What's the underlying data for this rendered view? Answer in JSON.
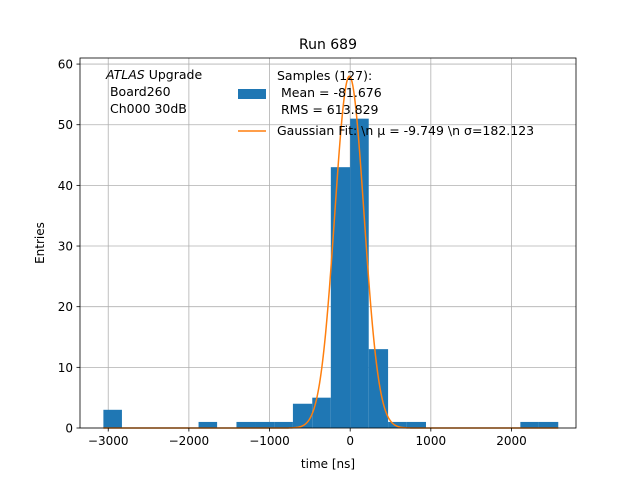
{
  "chart_data": {
    "type": "bar",
    "title": "Run 689",
    "xlabel": "time [ns]",
    "ylabel": "Entries",
    "xlim": [
      -3350,
      2800
    ],
    "ylim": [
      0,
      61
    ],
    "grid": true,
    "xticks": [
      -3000,
      -2000,
      -1000,
      0,
      1000,
      2000
    ],
    "xtick_labels": [
      "−3000",
      "−2000",
      "−1000",
      "0",
      "1000",
      "2000"
    ],
    "yticks": [
      0,
      10,
      20,
      30,
      40,
      50,
      60
    ],
    "ytick_labels": [
      "0",
      "10",
      "20",
      "30",
      "40",
      "50",
      "60"
    ],
    "annotation": {
      "italic": "ATLAS",
      "line1_rest": " Upgrade",
      "line2": " Board260",
      "line3": " Ch000 30dB"
    },
    "legend": {
      "placement": "top-right",
      "hist_lines": [
        "Samples (127):",
        " Mean = -81.676",
        " RMS = 613.829"
      ],
      "fit_label": "Gaussian Fit: \\n μ = -9.749 \\n σ=182.123"
    },
    "series": [
      {
        "kind": "histogram",
        "color": "#1f77b4",
        "bins": [
          {
            "x0": -3060,
            "x1": -2830,
            "count": 3
          },
          {
            "x0": -1880,
            "x1": -1650,
            "count": 1
          },
          {
            "x0": -1410,
            "x1": -1180,
            "count": 1
          },
          {
            "x0": -1180,
            "x1": -940,
            "count": 1
          },
          {
            "x0": -940,
            "x1": -710,
            "count": 1
          },
          {
            "x0": -710,
            "x1": -470,
            "count": 4
          },
          {
            "x0": -470,
            "x1": -240,
            "count": 5
          },
          {
            "x0": -240,
            "x1": 0,
            "count": 43
          },
          {
            "x0": 0,
            "x1": 230,
            "count": 51
          },
          {
            "x0": 230,
            "x1": 470,
            "count": 13
          },
          {
            "x0": 470,
            "x1": 700,
            "count": 1
          },
          {
            "x0": 700,
            "x1": 940,
            "count": 1
          },
          {
            "x0": 2110,
            "x1": 2340,
            "count": 1
          },
          {
            "x0": 2340,
            "x1": 2580,
            "count": 1
          }
        ]
      },
      {
        "kind": "gaussian",
        "color": "#ff7f0e",
        "mu": -9.749,
        "sigma": 182.123,
        "amplitude": 58,
        "x_range": [
          -3060,
          2580
        ]
      }
    ]
  }
}
